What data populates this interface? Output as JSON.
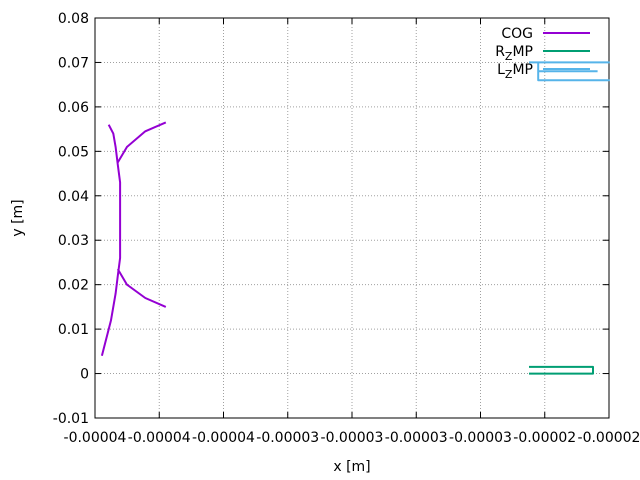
{
  "chart_data": {
    "type": "line",
    "xlabel": "x [m]",
    "ylabel": "y [m]",
    "x_tick_labels": [
      "-0.00004",
      "-0.00004",
      "-0.00004",
      "-0.00003",
      "-0.00003",
      "-0.00003",
      "-0.00003",
      "-0.00002",
      "-0.00002"
    ],
    "y_tick_labels": [
      "-0.01",
      "0",
      "0.01",
      "0.02",
      "0.03",
      "0.04",
      "0.05",
      "0.06",
      "0.07",
      "0.08"
    ],
    "xlim": [
      -4.3e-05,
      -2.05e-05
    ],
    "ylim": [
      -0.01,
      0.08
    ],
    "grid": true,
    "legend_position": "top-right",
    "series": [
      {
        "name": "COG",
        "name_base": "COG",
        "name_sub": "",
        "name_tail": "",
        "color": "#9400d3",
        "points": [
          [
            -4.27e-05,
            0.004
          ],
          [
            -4.23e-05,
            0.012
          ],
          [
            -4.21e-05,
            0.018
          ],
          [
            -4.2e-05,
            0.022
          ],
          [
            -4.19e-05,
            0.026
          ],
          [
            -4.19e-05,
            0.03
          ],
          [
            -4.19e-05,
            0.034
          ],
          [
            -4.19e-05,
            0.039
          ],
          [
            -4.19e-05,
            0.043
          ],
          [
            -4.2e-05,
            0.047
          ],
          [
            -4.21e-05,
            0.051
          ],
          [
            -4.22e-05,
            0.054
          ],
          [
            -4.24e-05,
            0.056
          ]
        ],
        "extra_segments": [
          [
            [
              -4.2e-05,
              0.0235
            ],
            [
              -4.16e-05,
              0.02
            ],
            [
              -4.08e-05,
              0.017
            ],
            [
              -3.99e-05,
              0.015
            ]
          ],
          [
            [
              -4.2e-05,
              0.0475
            ],
            [
              -4.16e-05,
              0.051
            ],
            [
              -4.08e-05,
              0.0545
            ],
            [
              -3.99e-05,
              0.0565
            ]
          ]
        ]
      },
      {
        "name": "RZMP",
        "name_base": "R",
        "name_sub": "Z",
        "name_tail": "MP",
        "color": "#009e73",
        "points": [
          [
            -2.4e-05,
            0.0015
          ],
          [
            -2.12e-05,
            0.0015
          ],
          [
            -2.12e-05,
            0.0
          ],
          [
            -2.4e-05,
            0.0
          ]
        ]
      },
      {
        "name": "LZMP",
        "name_base": "L",
        "name_sub": "Z",
        "name_tail": "MP",
        "color": "#56b4e9",
        "points": [
          [
            -2.4e-05,
            0.07
          ],
          [
            -2.05e-05,
            0.07
          ],
          [
            -2.36e-05,
            0.07
          ],
          [
            -2.36e-05,
            0.066
          ],
          [
            -2.05e-05,
            0.066
          ],
          [
            -2.36e-05,
            0.066
          ],
          [
            -2.36e-05,
            0.068
          ],
          [
            -2.1e-05,
            0.068
          ]
        ]
      }
    ]
  }
}
